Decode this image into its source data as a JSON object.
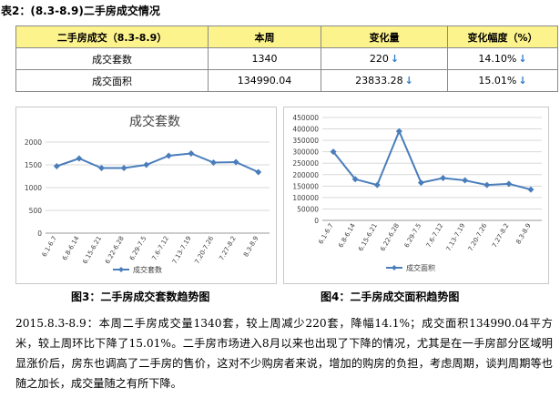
{
  "caption": "表2：(8.3-8.9)二手房成交情况",
  "table": {
    "header": [
      "二手房成交（8.3-8.9）",
      "本周",
      "变化量",
      "变化幅度（%）"
    ],
    "rows": [
      {
        "label": "成交套数",
        "week": "1340",
        "change": "220",
        "pct": "14.10%"
      },
      {
        "label": "成交面积",
        "week": "134990.04",
        "change": "23833.28",
        "pct": "15.01%"
      }
    ],
    "arrow_icon": "down-arrow-icon",
    "arrow_color": "#2e7bc9"
  },
  "chart_data": [
    {
      "type": "line",
      "title": "成交套数",
      "categories": [
        "6.1-6.7",
        "6.8-6.14",
        "6.15-6.21",
        "6.22-6.28",
        "6.29-7.5",
        "7.6-7.12",
        "7.13-7.19",
        "7.20-7.26",
        "7.27-8.2",
        "8.3-8.9"
      ],
      "series": [
        {
          "name": "成交套数",
          "values": [
            1470,
            1640,
            1430,
            1430,
            1500,
            1700,
            1750,
            1550,
            1560,
            1340
          ],
          "color": "#4a7ebb"
        }
      ],
      "ylim": [
        0,
        2000
      ],
      "yticks": [
        0,
        500,
        1000,
        1500,
        2000
      ],
      "grid": true,
      "legend": "bottom"
    },
    {
      "type": "line",
      "title": "",
      "categories": [
        "6.1-6.7",
        "6.8-6.14",
        "6.15-6.21",
        "6.22-6.28",
        "6.29-7.5",
        "7.6-7.12",
        "7.13-7.19",
        "7.20-7.26",
        "7.27-8.2",
        "8.3-8.9"
      ],
      "series": [
        {
          "name": "成交面积",
          "values": [
            300000,
            180000,
            155000,
            390000,
            165000,
            185000,
            175000,
            155000,
            160000,
            135000
          ],
          "color": "#4a7ebb"
        }
      ],
      "ylim": [
        0,
        450000
      ],
      "yticks": [
        0,
        50000,
        100000,
        150000,
        200000,
        250000,
        300000,
        350000,
        400000,
        450000
      ],
      "grid": true,
      "legend": "bottom"
    }
  ],
  "fig3_caption": "图3：二手房成交套数趋势图",
  "fig4_caption": "图4：二手房成交面积趋势图",
  "paragraph": "2015.8.3-8.9：本周二手房成交量1340套，较上周减少220套，降幅14.1%；成交面积134990.04平方米，较上周环比下降了15.01%。二手房市场进入8月以来也出现了下降的情况，尤其是在一手房部分区域明显涨价后，房东也调高了二手房的售价，这对不少购房者来说，增加的购房的负担，考虑周期，谈判周期等也随之加长，成交量随之有所下降。"
}
